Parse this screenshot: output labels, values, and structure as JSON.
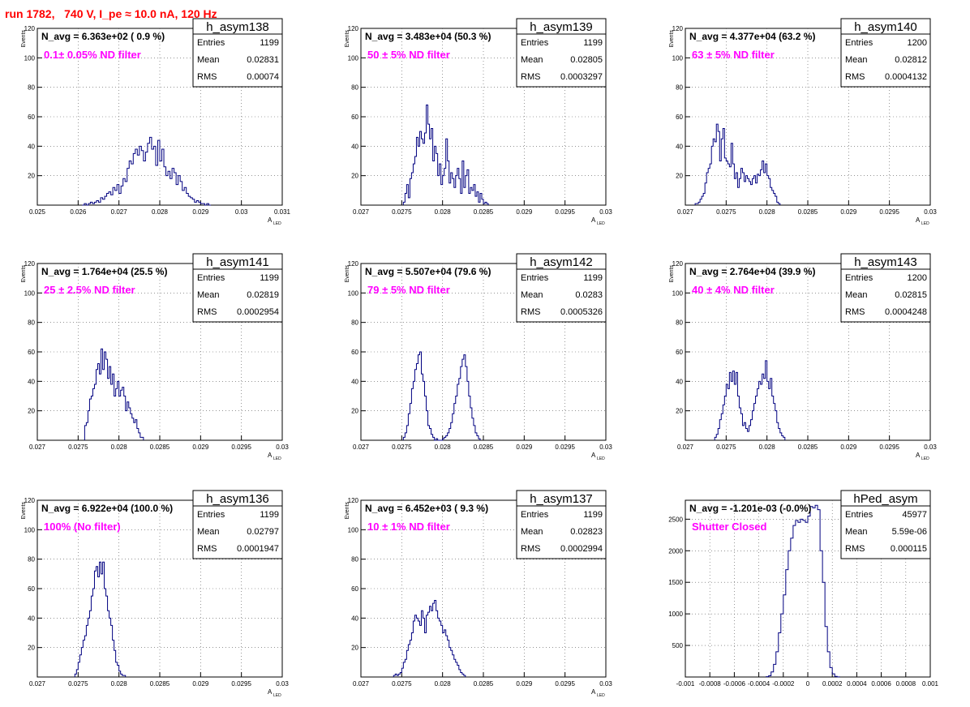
{
  "run_title": "run 1782,   740 V, I_pe ≈ 10.0 nA, 120 Hz",
  "colors": {
    "hist": "#000080",
    "annotation": "#ff00ff",
    "title": "#ff0000"
  },
  "stats_labels": {
    "entries": "Entries",
    "mean": "Mean",
    "rms": "RMS"
  },
  "chart_data": [
    {
      "type": "histogram",
      "name": "h_asym138",
      "navg": "N_avg = 6.363e+02 ( 0.9 %)",
      "filter": "0.1± 0.05% ND filter",
      "stats": {
        "entries": "1199",
        "mean": "0.02831",
        "rms": "0.00074"
      },
      "xlabel": "A",
      "xlabel_sub": "LED",
      "ylabel": "Events",
      "xlim": [
        0.025,
        0.031
      ],
      "ylim": [
        0,
        120
      ],
      "xticks": [
        0.025,
        0.026,
        0.027,
        0.028,
        0.029,
        0.03,
        0.031
      ],
      "xtick_labels": [
        "0.025",
        "0.026",
        "0.027",
        "0.028",
        "0.029",
        "0.03",
        "0.031"
      ],
      "yticks": [
        20,
        40,
        60,
        80,
        100,
        120
      ],
      "ytick_labels": [
        "20",
        "40",
        "60",
        "80",
        "100",
        "120"
      ],
      "grid": true,
      "x_start": 0.0261,
      "bin_width": 5e-05,
      "values": [
        0,
        1,
        0,
        1,
        2,
        1,
        2,
        3,
        2,
        5,
        4,
        6,
        8,
        9,
        7,
        12,
        10,
        14,
        8,
        13,
        18,
        16,
        25,
        30,
        28,
        35,
        38,
        34,
        40,
        37,
        30,
        36,
        42,
        46,
        38,
        40,
        27,
        44,
        30,
        38,
        26,
        20,
        23,
        18,
        25,
        22,
        14,
        20,
        16,
        10,
        12,
        8,
        6,
        5,
        4,
        2,
        3,
        2,
        1,
        1,
        0,
        1,
        0
      ]
    },
    {
      "type": "histogram",
      "name": "h_asym139",
      "navg": "N_avg = 3.483e+04 (50.3 %)",
      "filter": "50 ± 5% ND filter",
      "stats": {
        "entries": "1199",
        "mean": "0.02805",
        "rms": "0.0003297"
      },
      "xlabel": "A",
      "xlabel_sub": "LED",
      "ylabel": "Events",
      "xlim": [
        0.027,
        0.03
      ],
      "ylim": [
        0,
        120
      ],
      "xticks": [
        0.027,
        0.0275,
        0.028,
        0.0285,
        0.029,
        0.0295,
        0.03
      ],
      "xtick_labels": [
        "0.027",
        "0.0275",
        "0.028",
        "0.0285",
        "0.029",
        "0.0295",
        "0.03"
      ],
      "yticks": [
        20,
        40,
        60,
        80,
        100,
        120
      ],
      "ytick_labels": [
        "20",
        "40",
        "60",
        "80",
        "100",
        "120"
      ],
      "grid": true,
      "x_start": 0.02752,
      "bin_width": 2e-05,
      "values": [
        2,
        8,
        14,
        5,
        18,
        22,
        28,
        33,
        46,
        40,
        50,
        45,
        42,
        49,
        68,
        55,
        45,
        52,
        30,
        40,
        35,
        20,
        28,
        14,
        20,
        25,
        45,
        30,
        15,
        22,
        18,
        12,
        20,
        25,
        18,
        8,
        30,
        12,
        20,
        24,
        8,
        12,
        10,
        14,
        6,
        9,
        2,
        8,
        4,
        1,
        2,
        1
      ]
    },
    {
      "type": "histogram",
      "name": "h_asym140",
      "navg": "N_avg = 4.377e+04 (63.2 %)",
      "filter": "63 ± 5% ND filter",
      "stats": {
        "entries": "1200",
        "mean": "0.02812",
        "rms": "0.0004132"
      },
      "xlabel": "A",
      "xlabel_sub": "LED",
      "ylabel": "Events",
      "xlim": [
        0.027,
        0.03
      ],
      "ylim": [
        0,
        120
      ],
      "xticks": [
        0.027,
        0.0275,
        0.028,
        0.0285,
        0.029,
        0.0295,
        0.03
      ],
      "xtick_labels": [
        "0.027",
        "0.0275",
        "0.028",
        "0.0285",
        "0.029",
        "0.0295",
        "0.03"
      ],
      "yticks": [
        20,
        40,
        60,
        80,
        100,
        120
      ],
      "ytick_labels": [
        "20",
        "40",
        "60",
        "80",
        "100",
        "120"
      ],
      "grid": true,
      "x_start": 0.02712,
      "bin_width": 2e-05,
      "values": [
        1,
        1,
        2,
        4,
        6,
        8,
        15,
        22,
        25,
        28,
        40,
        45,
        43,
        55,
        50,
        30,
        45,
        52,
        32,
        30,
        28,
        26,
        42,
        28,
        18,
        22,
        12,
        18,
        25,
        22,
        16,
        20,
        18,
        16,
        14,
        18,
        20,
        15,
        21,
        20,
        24,
        30,
        22,
        28,
        20,
        18,
        12,
        10,
        8,
        6,
        2,
        1
      ]
    },
    {
      "type": "histogram",
      "name": "h_asym141",
      "navg": "N_avg = 1.764e+04 (25.5 %)",
      "filter": "25 ± 2.5% ND filter",
      "stats": {
        "entries": "1199",
        "mean": "0.02819",
        "rms": "0.0002954"
      },
      "xlabel": "A",
      "xlabel_sub": "LED",
      "ylabel": "Events",
      "xlim": [
        0.027,
        0.03
      ],
      "ylim": [
        0,
        120
      ],
      "xticks": [
        0.027,
        0.0275,
        0.028,
        0.0285,
        0.029,
        0.0295,
        0.03
      ],
      "xtick_labels": [
        "0.027",
        "0.0275",
        "0.028",
        "0.0285",
        "0.029",
        "0.0295",
        "0.03"
      ],
      "yticks": [
        20,
        40,
        60,
        80,
        100,
        120
      ],
      "ytick_labels": [
        "20",
        "40",
        "60",
        "80",
        "100",
        "120"
      ],
      "grid": true,
      "x_start": 0.02758,
      "bin_width": 2e-05,
      "values": [
        10,
        12,
        20,
        28,
        30,
        35,
        38,
        48,
        52,
        45,
        62,
        48,
        60,
        55,
        42,
        50,
        38,
        45,
        30,
        35,
        40,
        30,
        34,
        36,
        30,
        20,
        26,
        22,
        18,
        15,
        12,
        14,
        8,
        5,
        2,
        2
      ]
    },
    {
      "type": "histogram",
      "name": "h_asym142",
      "navg": "N_avg = 5.507e+04 (79.6 %)",
      "filter": "79 ± 5% ND filter",
      "stats": {
        "entries": "1199",
        "mean": "0.0283",
        "rms": "0.0005326"
      },
      "xlabel": "A",
      "xlabel_sub": "LED",
      "ylabel": "Events",
      "xlim": [
        0.027,
        0.03
      ],
      "ylim": [
        0,
        120
      ],
      "xticks": [
        0.027,
        0.0275,
        0.028,
        0.0285,
        0.029,
        0.0295,
        0.03
      ],
      "xtick_labels": [
        "0.027",
        "0.0275",
        "0.028",
        "0.0285",
        "0.029",
        "0.0295",
        "0.03"
      ],
      "yticks": [
        20,
        40,
        60,
        80,
        100,
        120
      ],
      "ytick_labels": [
        "20",
        "40",
        "60",
        "80",
        "100",
        "120"
      ],
      "grid": true,
      "x_start": 0.02752,
      "bin_width": 2e-05,
      "values": [
        2,
        5,
        10,
        18,
        25,
        35,
        40,
        48,
        52,
        58,
        60,
        45,
        40,
        30,
        20,
        10,
        8,
        4,
        2,
        0,
        1,
        0,
        0,
        0,
        1,
        2,
        3,
        5,
        8,
        12,
        18,
        25,
        30,
        38,
        42,
        50,
        55,
        58,
        50,
        40,
        30,
        22,
        15,
        10,
        5,
        3,
        1
      ]
    },
    {
      "type": "histogram",
      "name": "h_asym143",
      "navg": "N_avg = 2.764e+04 (39.9 %)",
      "filter": "40 ± 4% ND filter",
      "stats": {
        "entries": "1200",
        "mean": "0.02815",
        "rms": "0.0004248"
      },
      "xlabel": "A",
      "xlabel_sub": "LED",
      "ylabel": "Events",
      "xlim": [
        0.027,
        0.03
      ],
      "ylim": [
        0,
        120
      ],
      "xticks": [
        0.027,
        0.0275,
        0.028,
        0.0285,
        0.029,
        0.0295,
        0.03
      ],
      "xtick_labels": [
        "0.027",
        "0.0275",
        "0.028",
        "0.0285",
        "0.029",
        "0.0295",
        "0.03"
      ],
      "yticks": [
        20,
        40,
        60,
        80,
        100,
        120
      ],
      "ytick_labels": [
        "20",
        "40",
        "60",
        "80",
        "100",
        "120"
      ],
      "grid": true,
      "x_start": 0.02736,
      "bin_width": 2e-05,
      "values": [
        2,
        4,
        8,
        14,
        18,
        24,
        30,
        38,
        35,
        46,
        40,
        47,
        38,
        46,
        30,
        22,
        18,
        10,
        12,
        8,
        6,
        10,
        14,
        20,
        25,
        30,
        35,
        40,
        38,
        45,
        42,
        54,
        40,
        35,
        42,
        30,
        25,
        20,
        12,
        8,
        5,
        3,
        2
      ]
    },
    {
      "type": "histogram",
      "name": "h_asym136",
      "navg": "N_avg = 6.922e+04 (100.0 %)",
      "filter": "100% (No filter)",
      "stats": {
        "entries": "1199",
        "mean": "0.02797",
        "rms": "0.0001947"
      },
      "xlabel": "A",
      "xlabel_sub": "LED",
      "ylabel": "Events",
      "xlim": [
        0.027,
        0.03
      ],
      "ylim": [
        0,
        120
      ],
      "xticks": [
        0.027,
        0.0275,
        0.028,
        0.0285,
        0.029,
        0.0295,
        0.03
      ],
      "xtick_labels": [
        "0.027",
        "0.0275",
        "0.028",
        "0.0285",
        "0.029",
        "0.0295",
        "0.03"
      ],
      "yticks": [
        20,
        40,
        60,
        80,
        100,
        120
      ],
      "ytick_labels": [
        "20",
        "40",
        "60",
        "80",
        "100",
        "120"
      ],
      "grid": true,
      "x_start": 0.02746,
      "bin_width": 2e-05,
      "values": [
        2,
        5,
        10,
        15,
        20,
        25,
        28,
        35,
        40,
        45,
        55,
        60,
        72,
        75,
        68,
        78,
        70,
        78,
        60,
        55,
        45,
        40,
        35,
        25,
        18,
        10,
        8,
        4,
        2,
        1,
        1
      ]
    },
    {
      "type": "histogram",
      "name": "h_asym137",
      "navg": "N_avg = 6.452e+03 ( 9.3 %)",
      "filter": "10 ± 1% ND filter",
      "stats": {
        "entries": "1199",
        "mean": "0.02823",
        "rms": "0.0002994"
      },
      "xlabel": "A",
      "xlabel_sub": "LED",
      "ylabel": "Events",
      "xlim": [
        0.027,
        0.03
      ],
      "ylim": [
        0,
        120
      ],
      "xticks": [
        0.027,
        0.0275,
        0.028,
        0.0285,
        0.029,
        0.0295,
        0.03
      ],
      "xtick_labels": [
        "0.027",
        "0.0275",
        "0.028",
        "0.0285",
        "0.029",
        "0.0295",
        "0.03"
      ],
      "yticks": [
        20,
        40,
        60,
        80,
        100,
        120
      ],
      "ytick_labels": [
        "20",
        "40",
        "60",
        "80",
        "100",
        "120"
      ],
      "grid": true,
      "x_start": 0.0274,
      "bin_width": 2e-05,
      "values": [
        1,
        2,
        1,
        2,
        3,
        6,
        10,
        12,
        18,
        22,
        25,
        30,
        38,
        42,
        40,
        38,
        35,
        45,
        40,
        30,
        42,
        44,
        48,
        45,
        50,
        52,
        45,
        40,
        38,
        35,
        30,
        32,
        28,
        25,
        20,
        18,
        15,
        12,
        10,
        8,
        5,
        3,
        2,
        1
      ]
    },
    {
      "type": "histogram",
      "name": "hPed_asym",
      "navg": "N_avg = -1.201e-03 (-0.0%)",
      "filter": "Shutter Closed",
      "stats": {
        "entries": "45977",
        "mean": "5.59e-06",
        "rms": "0.000115"
      },
      "xlabel": "",
      "xlabel_sub": "",
      "ylabel": "",
      "xlim": [
        -0.001,
        0.001
      ],
      "ylim": [
        0,
        2800
      ],
      "xticks": [
        -0.001,
        -0.0008,
        -0.0006,
        -0.0004,
        -0.0002,
        0,
        0.0002,
        0.0004,
        0.0006,
        0.0008,
        0.001
      ],
      "xtick_labels": [
        "-0.001",
        "-0.0008",
        "-0.0006",
        "-0.0004",
        "-0.0002",
        "0",
        "0.0002",
        "0.0004",
        "0.0006",
        "0.0008",
        "0.001"
      ],
      "yticks": [
        500,
        1000,
        1500,
        2000,
        2500
      ],
      "ytick_labels": [
        "500",
        "1000",
        "1500",
        "2000",
        "2500"
      ],
      "grid": true,
      "x_start": -0.00034,
      "bin_width": 2e-05,
      "values": [
        5,
        20,
        80,
        200,
        400,
        700,
        1000,
        1300,
        1700,
        2000,
        2200,
        2400,
        2480,
        2450,
        2500,
        2480,
        2450,
        2550,
        2700,
        2680,
        2720,
        2650,
        2000,
        1500,
        800,
        400,
        150,
        50,
        10,
        2
      ]
    }
  ]
}
